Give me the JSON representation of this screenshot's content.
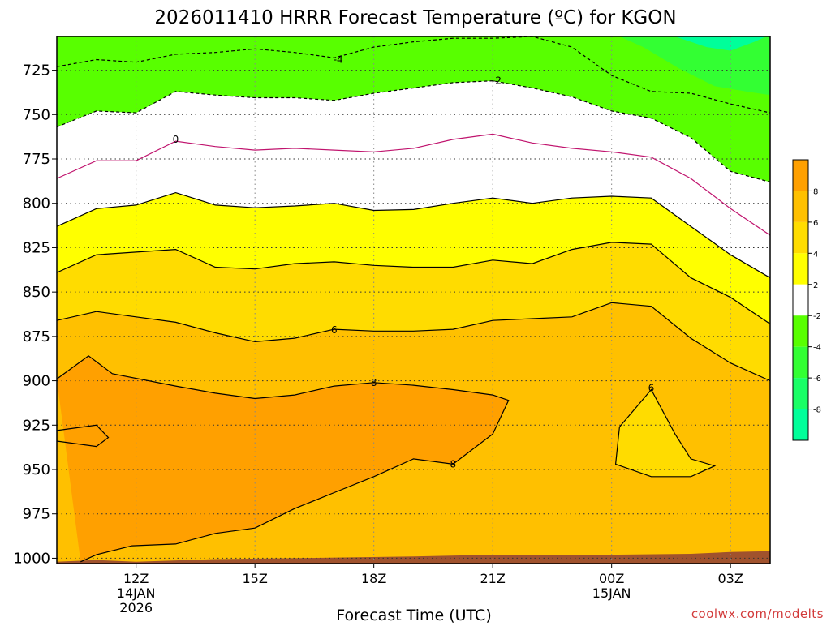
{
  "chart_data": {
    "type": "contour",
    "title": "2026011410 HRRR Forecast Temperature (ºC) for KGON",
    "xlabel": "Forecast Time (UTC)",
    "credit": "coolwx.com/modelts",
    "x_range_hours": [
      10,
      28
    ],
    "y_axis": {
      "label": "",
      "reversed": true,
      "range_hPa": [
        706,
        1003
      ]
    },
    "x_ticks": [
      {
        "hour": 12,
        "label": "12Z",
        "sub": [
          "14JAN",
          "2026"
        ]
      },
      {
        "hour": 15,
        "label": "15Z",
        "sub": []
      },
      {
        "hour": 18,
        "label": "18Z",
        "sub": []
      },
      {
        "hour": 21,
        "label": "21Z",
        "sub": []
      },
      {
        "hour": 24,
        "label": "00Z",
        "sub": [
          "15JAN"
        ]
      },
      {
        "hour": 27,
        "label": "03Z",
        "sub": []
      }
    ],
    "y_ticks": [
      725,
      750,
      775,
      800,
      825,
      850,
      875,
      900,
      925,
      950,
      975,
      1000
    ],
    "grid": true,
    "fills": [
      {
        "level": "<-8",
        "color": "#00ff9a"
      },
      {
        "level": "-8..-6",
        "color": "#19ff66"
      },
      {
        "level": "-6..-4",
        "color": "#33ff33"
      },
      {
        "level": "-4..-2",
        "color": "#58ff00"
      },
      {
        "level": "-2..2",
        "color": "#ffffff"
      },
      {
        "level": "2..4",
        "color": "#ffff00"
      },
      {
        "level": "4..6",
        "color": "#ffdc00"
      },
      {
        "level": "6..8",
        "color": "#ffc000"
      },
      {
        "level": ">8",
        "color": "#ffa000"
      },
      {
        "level": "ground",
        "color": "#a0522d"
      }
    ],
    "colorbar": {
      "colors": [
        "#00ff9a",
        "#19ff66",
        "#33ff33",
        "#58ff00",
        "#ffffff",
        "#ffff00",
        "#ffdc00",
        "#ffc000",
        "#ffa000"
      ],
      "ticks": [
        "-8",
        "-6",
        "-4",
        "-2",
        "2",
        "4",
        "6",
        "8"
      ]
    },
    "contours": [
      {
        "value": -4,
        "style": "dashed",
        "color": "#000000",
        "points": [
          [
            10,
            723
          ],
          [
            11,
            719
          ],
          [
            12,
            720.5
          ],
          [
            13,
            716
          ],
          [
            14,
            715
          ],
          [
            15,
            713
          ],
          [
            16,
            715
          ],
          [
            17,
            718
          ],
          [
            18,
            712
          ],
          [
            19,
            709
          ],
          [
            20,
            707
          ],
          [
            21,
            707
          ],
          [
            22,
            706
          ],
          [
            23,
            712
          ],
          [
            24,
            728
          ],
          [
            25,
            737
          ],
          [
            26,
            738
          ],
          [
            27,
            744
          ],
          [
            28,
            749
          ]
        ]
      },
      {
        "value": -2,
        "style": "dashed",
        "color": "#000000",
        "points": [
          [
            10,
            757
          ],
          [
            11,
            748
          ],
          [
            12,
            749
          ],
          [
            13,
            737
          ],
          [
            14,
            739
          ],
          [
            15,
            740.5
          ],
          [
            16,
            740.5
          ],
          [
            17,
            742
          ],
          [
            18,
            738
          ],
          [
            19,
            735
          ],
          [
            20,
            732
          ],
          [
            21,
            731
          ],
          [
            22,
            735
          ],
          [
            23,
            740
          ],
          [
            24,
            748
          ],
          [
            25,
            752
          ],
          [
            26,
            763
          ],
          [
            27,
            782
          ],
          [
            28,
            788
          ]
        ]
      },
      {
        "value": 0,
        "style": "solid",
        "color": "#c0146e",
        "points": [
          [
            10,
            786
          ],
          [
            11,
            776
          ],
          [
            12,
            776
          ],
          [
            13,
            765
          ],
          [
            14,
            768
          ],
          [
            15,
            770
          ],
          [
            16,
            769
          ],
          [
            17,
            770
          ],
          [
            18,
            771
          ],
          [
            19,
            769
          ],
          [
            20,
            764
          ],
          [
            21,
            761
          ],
          [
            22,
            766
          ],
          [
            23,
            769
          ],
          [
            24,
            771
          ],
          [
            25,
            774
          ],
          [
            26,
            786
          ],
          [
            27,
            803
          ],
          [
            28,
            818
          ]
        ]
      },
      {
        "value": 2,
        "style": "solid",
        "color": "#000000",
        "points": [
          [
            10,
            813
          ],
          [
            11,
            803
          ],
          [
            12,
            801
          ],
          [
            13,
            794
          ],
          [
            14,
            801
          ],
          [
            15,
            802.5
          ],
          [
            16,
            801.5
          ],
          [
            17,
            800
          ],
          [
            18,
            804
          ],
          [
            19,
            803.5
          ],
          [
            20,
            800
          ],
          [
            21,
            797
          ],
          [
            22,
            800
          ],
          [
            23,
            797
          ],
          [
            24,
            796
          ],
          [
            25,
            797
          ],
          [
            26,
            813
          ],
          [
            27,
            829
          ],
          [
            28,
            842
          ]
        ]
      },
      {
        "value": 4,
        "style": "solid",
        "color": "#000000",
        "points": [
          [
            10,
            839
          ],
          [
            11,
            829
          ],
          [
            12,
            827.5
          ],
          [
            13,
            826
          ],
          [
            14,
            836
          ],
          [
            15,
            837
          ],
          [
            16,
            834
          ],
          [
            17,
            833
          ],
          [
            18,
            835
          ],
          [
            19,
            836
          ],
          [
            20,
            836
          ],
          [
            21,
            832
          ],
          [
            22,
            834
          ],
          [
            23,
            826
          ],
          [
            24,
            822
          ],
          [
            25,
            823
          ],
          [
            26,
            842
          ],
          [
            27,
            853
          ],
          [
            28,
            868
          ]
        ]
      },
      {
        "value": 6,
        "style": "solid",
        "color": "#000000",
        "points": [
          [
            10,
            866
          ],
          [
            11,
            861
          ],
          [
            12,
            864
          ],
          [
            13,
            867
          ],
          [
            14,
            873
          ],
          [
            15,
            878
          ],
          [
            16,
            876
          ],
          [
            17,
            871
          ],
          [
            18,
            872
          ],
          [
            19,
            872
          ],
          [
            20,
            871
          ],
          [
            21,
            866
          ],
          [
            22,
            865
          ],
          [
            23,
            864
          ],
          [
            24,
            856
          ],
          [
            25,
            858
          ],
          [
            26,
            876
          ],
          [
            27,
            890
          ],
          [
            28,
            900
          ]
        ]
      },
      {
        "value": 8,
        "style": "solid",
        "color": "#000000",
        "points": [
          [
            10,
            899
          ],
          [
            10.8,
            886
          ],
          [
            11.4,
            896
          ],
          [
            13,
            903
          ],
          [
            14,
            907
          ],
          [
            15,
            910
          ],
          [
            16,
            908
          ],
          [
            17,
            903
          ],
          [
            18,
            901
          ],
          [
            19,
            902.5
          ],
          [
            20,
            905
          ],
          [
            21,
            908
          ],
          [
            21.4,
            911
          ],
          [
            21,
            930
          ],
          [
            20,
            947
          ],
          [
            19,
            944
          ],
          [
            18,
            954
          ],
          [
            17,
            963
          ],
          [
            16,
            972
          ],
          [
            15,
            983
          ],
          [
            14,
            986
          ],
          [
            13,
            992
          ],
          [
            11.9,
            993
          ],
          [
            11,
            998
          ],
          [
            10.6,
            1002
          ]
        ]
      },
      {
        "value": 8,
        "style": "solid",
        "color": "#000000",
        "points": [
          [
            10,
            928
          ],
          [
            11,
            925
          ],
          [
            11.3,
            932
          ],
          [
            11,
            937
          ],
          [
            10,
            934
          ]
        ]
      },
      {
        "value": 6,
        "style": "solid",
        "color": "#000000",
        "points": [
          [
            25,
            905
          ],
          [
            24.2,
            926
          ],
          [
            24.1,
            947
          ],
          [
            25,
            954
          ],
          [
            26,
            954
          ],
          [
            26.6,
            948
          ],
          [
            26,
            944
          ],
          [
            25.6,
            930
          ]
        ]
      }
    ],
    "contour_labels": [
      {
        "text": "-4",
        "x": 17.1,
        "y": 719
      },
      {
        "text": "-2",
        "x": 21.1,
        "y": 731
      },
      {
        "text": "0",
        "x": 13,
        "y": 764
      },
      {
        "text": "6",
        "x": 17,
        "y": 871.5
      },
      {
        "text": "8",
        "x": 18,
        "y": 901
      },
      {
        "text": "8",
        "x": 20,
        "y": 947
      },
      {
        "text": "6",
        "x": 25,
        "y": 904
      }
    ],
    "ground": [
      [
        10,
        1002
      ],
      [
        11,
        1001
      ],
      [
        12,
        1002
      ],
      [
        14,
        1000.5
      ],
      [
        16,
        1000
      ],
      [
        19,
        999
      ],
      [
        21,
        998
      ],
      [
        24,
        998
      ],
      [
        26,
        997.5
      ],
      [
        27,
        996.5
      ],
      [
        28,
        996
      ]
    ]
  }
}
